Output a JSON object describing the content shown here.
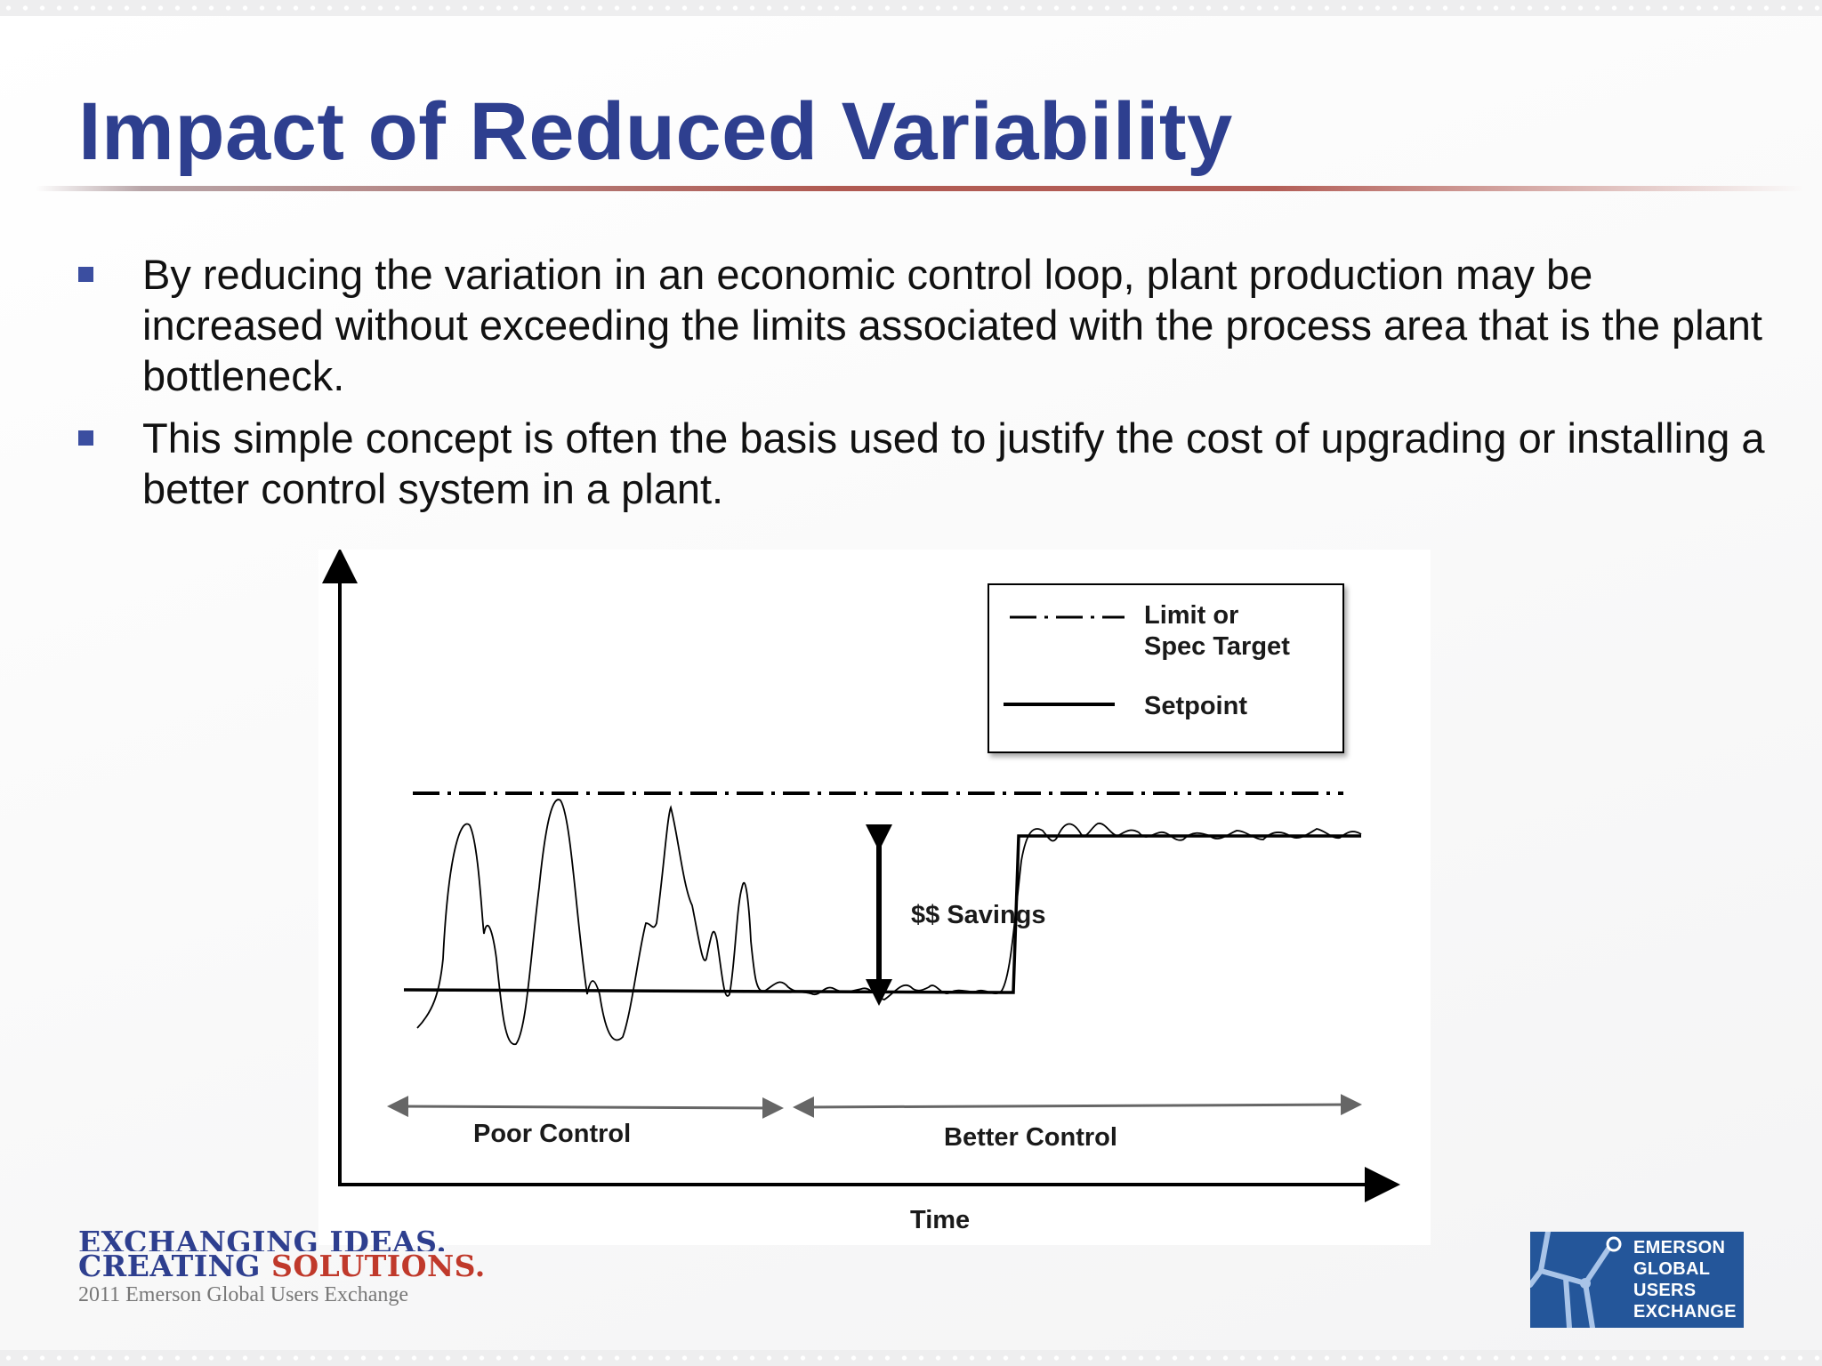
{
  "slide": {
    "title": "Impact of Reduced Variability",
    "bullets": [
      "By reducing the variation in an economic control loop, plant production may be increased without exceeding the limits associated with the process area that is the plant bottleneck.",
      "This simple concept is often the basis used to justify the cost of upgrading or installing a better control system in a plant."
    ]
  },
  "diagram": {
    "legend": {
      "limit_line1": "Limit or",
      "limit_line2": "Spec Target",
      "setpoint": "Setpoint"
    },
    "savings_label": "$$ Savings",
    "poor_control_label": "Poor Control",
    "better_control_label": "Better Control",
    "x_axis_label": "Time"
  },
  "footer": {
    "tagline_line1": "EXCHANGING IDEAS.",
    "tagline_line2_part1": "CREATING",
    "tagline_line2_part2": "SOLUTIONS.",
    "event_caption": "2011 Emerson Global Users Exchange"
  },
  "brand": {
    "line1": "EMERSON",
    "line2": "GLOBAL",
    "line3": "USERS",
    "line4": "EXCHANGE"
  }
}
